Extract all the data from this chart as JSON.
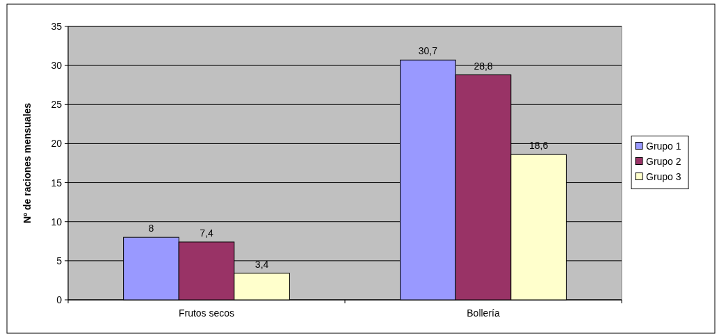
{
  "chart_data": {
    "type": "bar",
    "ylabel": "Nº de raciones mensuales",
    "categories": [
      "Frutos secos",
      "Bollería"
    ],
    "series": [
      {
        "name": "Grupo 1",
        "color": "#9999ff",
        "values": [
          8,
          30.7
        ],
        "value_labels": [
          "8",
          "30,7"
        ]
      },
      {
        "name": "Grupo 2",
        "color": "#993366",
        "values": [
          7.4,
          28.8
        ],
        "value_labels": [
          "7,4",
          "28,8"
        ]
      },
      {
        "name": "Grupo 3",
        "color": "#ffffcc",
        "values": [
          3.4,
          18.6
        ],
        "value_labels": [
          "3,4",
          "18,6"
        ]
      }
    ],
    "ylim": [
      0,
      35
    ],
    "yticks": [
      0,
      5,
      10,
      15,
      20,
      25,
      30,
      35
    ],
    "grid": "y",
    "legend": "right"
  }
}
